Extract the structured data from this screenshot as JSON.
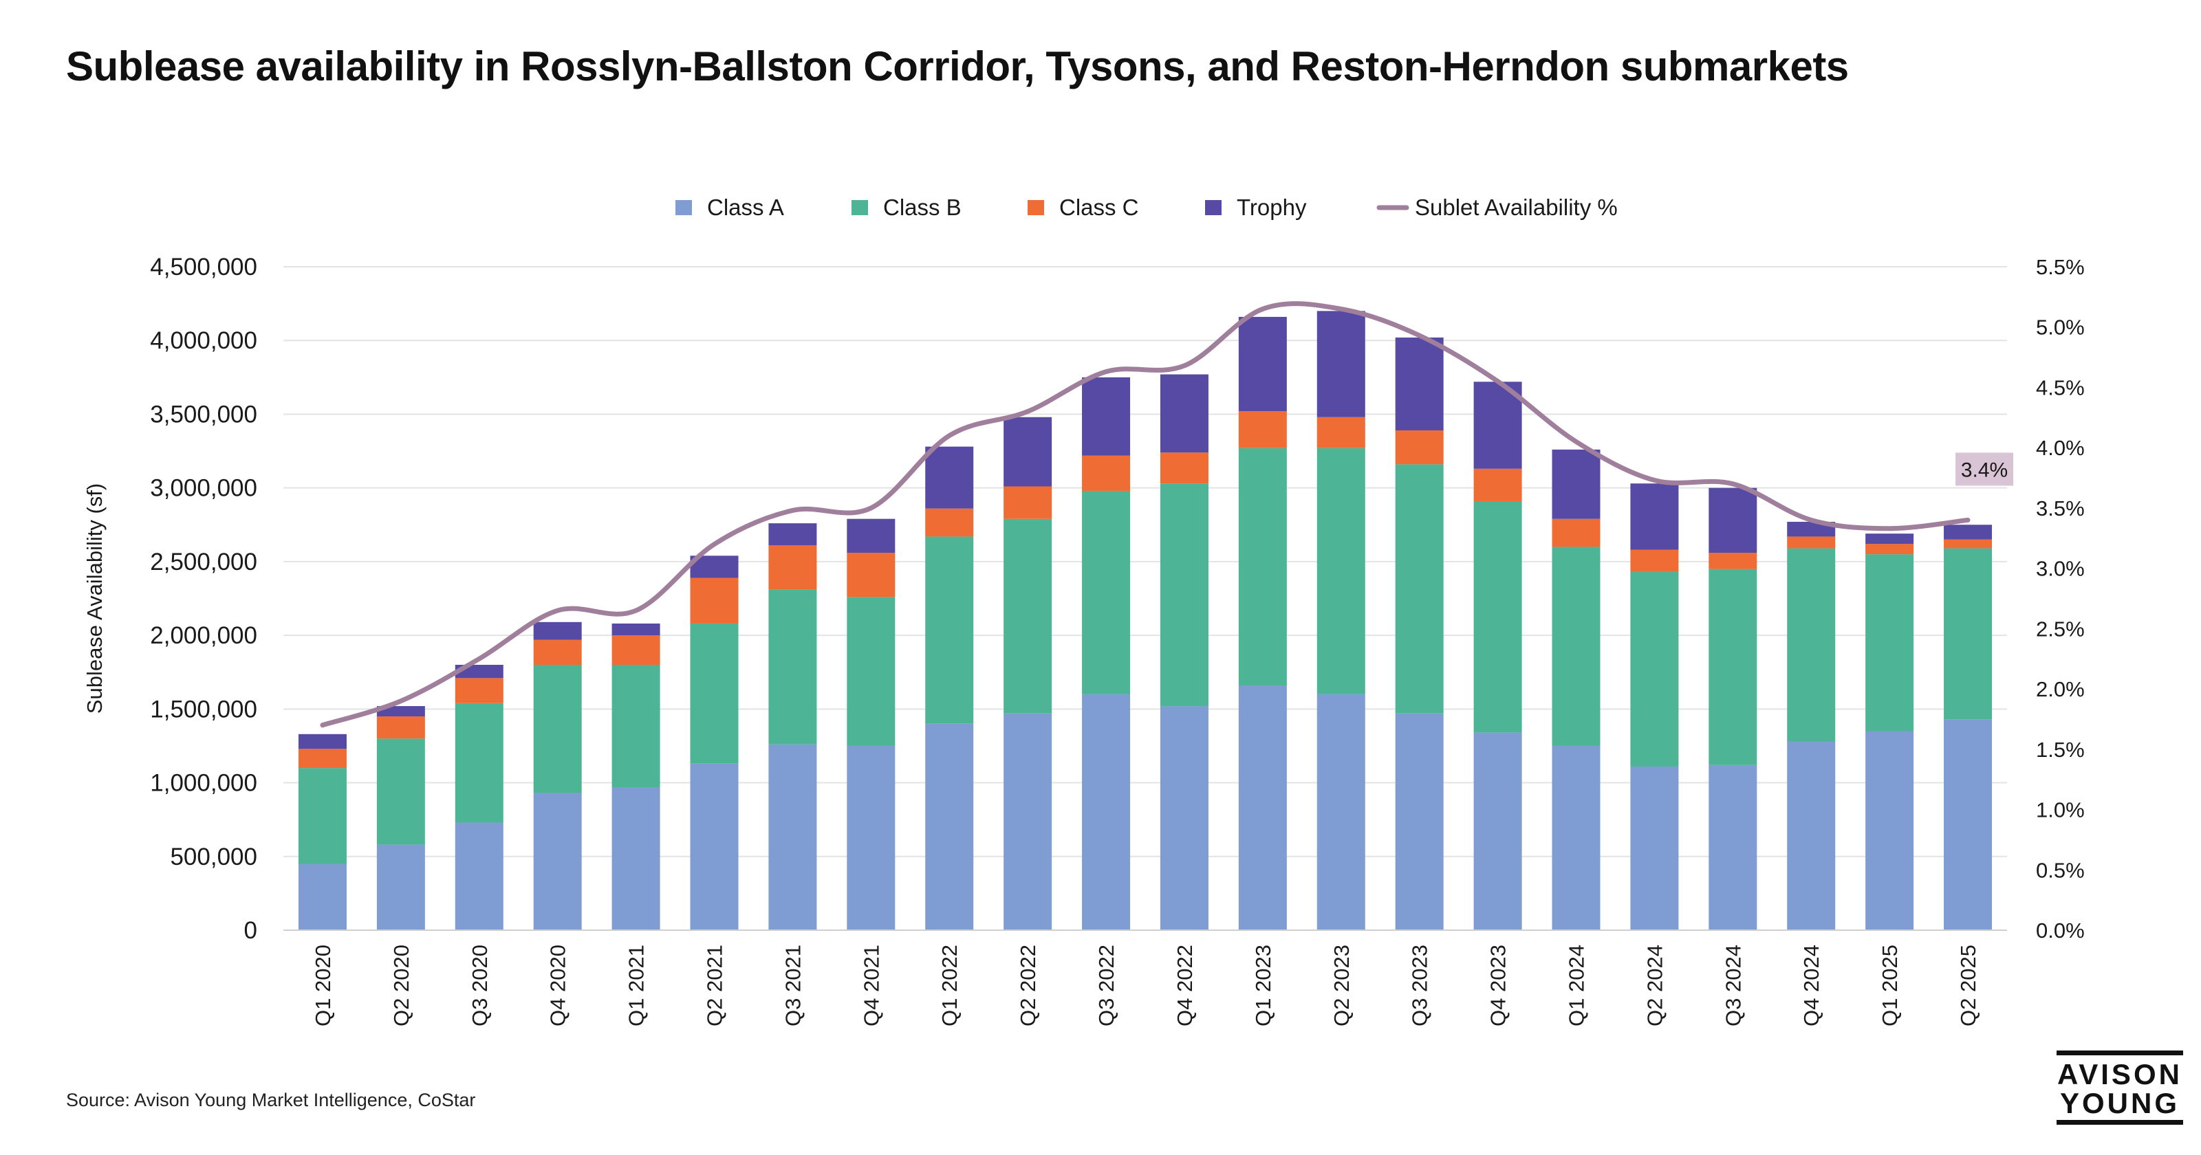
{
  "title": "Sublease availability in Rosslyn-Ballston Corridor, Tysons, and Reston-Herndon submarkets",
  "source": "Source: Avison Young Market Intelligence, CoStar",
  "logo": {
    "line1": "AVISON",
    "line2": "YOUNG"
  },
  "chart_data": {
    "type": "bar",
    "stacked": true,
    "categories": [
      "Q1 2020",
      "Q2 2020",
      "Q3 2020",
      "Q4 2020",
      "Q1 2021",
      "Q2 2021",
      "Q3 2021",
      "Q4 2021",
      "Q1 2022",
      "Q2 2022",
      "Q3 2022",
      "Q4 2022",
      "Q1 2023",
      "Q2 2023",
      "Q3 2023",
      "Q4 2023",
      "Q1 2024",
      "Q2 2024",
      "Q3 2024",
      "Q4 2024",
      "Q1 2025",
      "Q2 2025"
    ],
    "series": [
      {
        "name": "Class A",
        "color": "#7f9dd2",
        "values": [
          450000,
          580000,
          730000,
          930000,
          970000,
          1130000,
          1260000,
          1250000,
          1400000,
          1470000,
          1600000,
          1520000,
          1660000,
          1600000,
          1470000,
          1340000,
          1250000,
          1110000,
          1120000,
          1280000,
          1350000,
          1430000
        ]
      },
      {
        "name": "Class B",
        "color": "#4db595",
        "values": [
          650000,
          720000,
          810000,
          870000,
          830000,
          950000,
          1050000,
          1010000,
          1270000,
          1320000,
          1380000,
          1510000,
          1610000,
          1670000,
          1690000,
          1570000,
          1350000,
          1320000,
          1330000,
          1310000,
          1200000,
          1160000
        ]
      },
      {
        "name": "Class C",
        "color": "#ef6c35",
        "values": [
          130000,
          150000,
          170000,
          170000,
          200000,
          310000,
          300000,
          300000,
          190000,
          220000,
          240000,
          210000,
          250000,
          210000,
          230000,
          220000,
          190000,
          150000,
          110000,
          80000,
          70000,
          60000
        ]
      },
      {
        "name": "Trophy",
        "color": "#574aa4",
        "values": [
          100000,
          70000,
          90000,
          120000,
          80000,
          150000,
          150000,
          230000,
          420000,
          470000,
          530000,
          530000,
          640000,
          720000,
          630000,
          590000,
          470000,
          450000,
          440000,
          100000,
          70000,
          100000
        ]
      }
    ],
    "line": {
      "name": "Sublet Availability %",
      "color": "#a07f9c",
      "axis": "right",
      "values": [
        1.7,
        1.9,
        2.25,
        2.65,
        2.65,
        3.2,
        3.48,
        3.5,
        4.1,
        4.3,
        4.63,
        4.68,
        5.15,
        5.15,
        4.93,
        4.55,
        4.05,
        3.73,
        3.7,
        3.4,
        3.33,
        3.4
      ]
    },
    "annotation": {
      "text": "3.4%",
      "category": "Q2 2025"
    },
    "ylabel": "Sublease Availability (sf)",
    "ylim": [
      0,
      4500000
    ],
    "yticks": [
      "0",
      "500,000",
      "1,000,000",
      "1,500,000",
      "2,000,000",
      "2,500,000",
      "3,000,000",
      "3,500,000",
      "4,000,000",
      "4,500,000"
    ],
    "y2lim": [
      0,
      5.5
    ],
    "y2ticks": [
      "0.0%",
      "0.5%",
      "1.0%",
      "1.5%",
      "2.0%",
      "2.5%",
      "3.0%",
      "3.5%",
      "4.0%",
      "4.5%",
      "5.0%",
      "5.5%"
    ],
    "legend": [
      {
        "label": "Class A",
        "color": "#7f9dd2",
        "kind": "box"
      },
      {
        "label": "Class B",
        "color": "#4db595",
        "kind": "box"
      },
      {
        "label": "Class C",
        "color": "#ef6c35",
        "kind": "box"
      },
      {
        "label": "Trophy",
        "color": "#574aa4",
        "kind": "box"
      },
      {
        "label": "Sublet Availability %",
        "color": "#a07f9c",
        "kind": "line"
      }
    ],
    "legend_position": "top-center",
    "grid": true
  }
}
